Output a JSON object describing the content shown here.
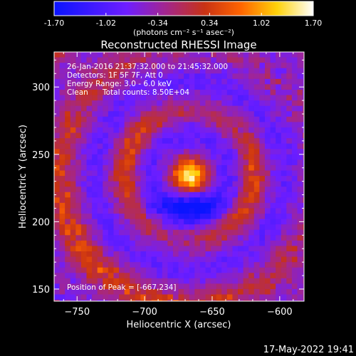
{
  "colorbar": {
    "ticks": [
      "-1.70",
      "-1.02",
      "-0.34",
      "0.34",
      "1.02",
      "1.70"
    ],
    "units": "(photons cm⁻² s⁻¹ asec⁻²)",
    "range": [
      -1.7,
      1.7
    ]
  },
  "info": {
    "time": "26-Jan-2016 21:37:32.000 to 21:45:32.000",
    "detectors": "Detectors: 1F 5F 7F, Att 0",
    "energy": "Energy Range: 3.0 - 6.0 keV",
    "clean_label": "Clean",
    "total_counts": "Total counts: 8.50E+04",
    "peak": "Position of Peak = [-667,234]"
  },
  "footer": {
    "timestamp": "17-May-2022 19:41"
  },
  "chart_data": {
    "type": "heatmap",
    "title": "Reconstructed RHESSI Image",
    "xlabel": "Heliocentric X (arcsec)",
    "ylabel": "Heliocentric Y (arcsec)",
    "xlim": [
      -767,
      -582
    ],
    "ylim": [
      141,
      326
    ],
    "xticks": [
      -750,
      -700,
      -650,
      -600
    ],
    "yticks": [
      150,
      200,
      250,
      300
    ],
    "peak": [
      -667,
      234
    ],
    "pixel_size_arcsec": 4,
    "colormap": [
      "#0a14ff",
      "#6e1eff",
      "#a02596",
      "#c83214",
      "#ff6400",
      "#ffd20a",
      "#ffffff"
    ],
    "colormap_stops": [
      0.0,
      0.28,
      0.42,
      0.58,
      0.72,
      0.86,
      1.0
    ]
  }
}
